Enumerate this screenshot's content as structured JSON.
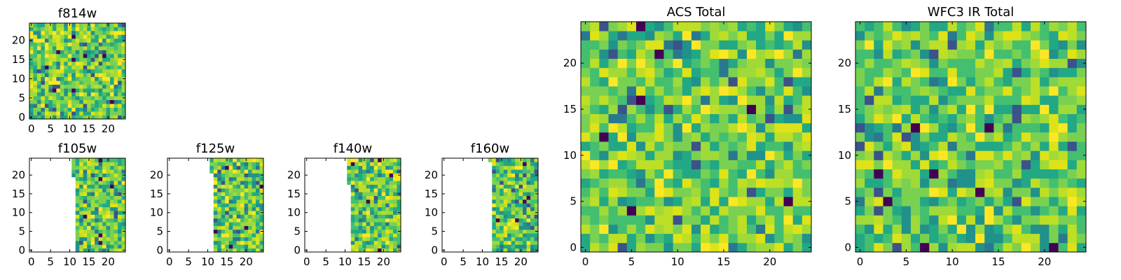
{
  "chart_data": [
    {
      "type": "heatmap",
      "title": "f814w",
      "seed": 11,
      "x_ticks": [
        0,
        5,
        10,
        15,
        20
      ],
      "y_ticks": [
        0,
        5,
        10,
        15,
        20
      ],
      "xlim": [
        0,
        25
      ],
      "ylim": [
        0,
        25
      ],
      "grid_size": 25,
      "colormap": "viridis",
      "mask": []
    },
    {
      "type": "heatmap",
      "title": "f105w",
      "seed": 23,
      "x_ticks": [
        0,
        5,
        10,
        15,
        20
      ],
      "y_ticks": [
        0,
        5,
        10,
        15,
        20
      ],
      "xlim": [
        0,
        25
      ],
      "ylim": [
        0,
        25
      ],
      "grid_size": 25,
      "colormap": "viridis",
      "mask": [
        [
          0,
          12
        ],
        [
          19,
          12
        ],
        [
          20,
          11
        ],
        [
          24,
          11
        ]
      ]
    },
    {
      "type": "heatmap",
      "title": "f125w",
      "seed": 37,
      "x_ticks": [
        0,
        5,
        10,
        15,
        20
      ],
      "y_ticks": [
        0,
        5,
        10,
        15,
        20
      ],
      "xlim": [
        0,
        25
      ],
      "ylim": [
        0,
        25
      ],
      "grid_size": 25,
      "colormap": "viridis",
      "mask": [
        [
          0,
          12
        ],
        [
          20,
          12
        ],
        [
          21,
          11
        ],
        [
          24,
          11
        ]
      ]
    },
    {
      "type": "heatmap",
      "title": "f140w",
      "seed": 41,
      "x_ticks": [
        0,
        5,
        10,
        15,
        20
      ],
      "y_ticks": [
        0,
        5,
        10,
        15,
        20
      ],
      "xlim": [
        0,
        25
      ],
      "ylim": [
        0,
        25
      ],
      "grid_size": 25,
      "colormap": "viridis",
      "mask": [
        [
          0,
          12
        ],
        [
          17,
          12
        ],
        [
          18,
          11
        ],
        [
          24,
          11
        ]
      ]
    },
    {
      "type": "heatmap",
      "title": "f160w",
      "seed": 53,
      "x_ticks": [
        0,
        5,
        10,
        15,
        20
      ],
      "y_ticks": [
        0,
        5,
        10,
        15,
        20
      ],
      "xlim": [
        0,
        25
      ],
      "ylim": [
        0,
        25
      ],
      "grid_size": 25,
      "colormap": "viridis",
      "mask": [
        [
          0,
          13
        ],
        [
          24,
          12
        ]
      ]
    },
    {
      "type": "heatmap",
      "title": "ACS Total",
      "seed": 61,
      "x_ticks": [
        0,
        5,
        10,
        15,
        20
      ],
      "y_ticks": [
        0,
        5,
        10,
        15,
        20
      ],
      "xlim": [
        0,
        25
      ],
      "ylim": [
        0,
        25
      ],
      "grid_size": 25,
      "colormap": "viridis",
      "mask": []
    },
    {
      "type": "heatmap",
      "title": "WFC3 IR Total",
      "seed": 79,
      "x_ticks": [
        0,
        5,
        10,
        15,
        20
      ],
      "y_ticks": [
        0,
        5,
        10,
        15,
        20
      ],
      "xlim": [
        0,
        25
      ],
      "ylim": [
        0,
        25
      ],
      "grid_size": 25,
      "colormap": "viridis",
      "mask": []
    }
  ]
}
